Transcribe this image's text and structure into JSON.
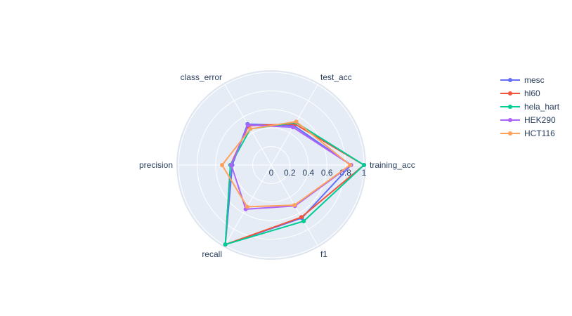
{
  "chart_data": {
    "type": "radar",
    "axes": [
      "training_acc",
      "test_acc",
      "class_error",
      "precision",
      "recall",
      "f1"
    ],
    "radial_ticks": [
      "0",
      "0.2",
      "0.4",
      "0.6",
      "0.8",
      "1"
    ],
    "radial_range": [
      0,
      1
    ],
    "grid": true,
    "legend_position": "top-right",
    "series": [
      {
        "name": "mesc",
        "color": "#636efa",
        "values": [
          0.86,
          0.49,
          0.51,
          0.42,
          0.99,
          0.66
        ]
      },
      {
        "name": "hl60",
        "color": "#ef553b",
        "values": [
          1.0,
          0.51,
          0.49,
          0.44,
          0.99,
          0.65
        ]
      },
      {
        "name": "hela_hart",
        "color": "#00cc96",
        "values": [
          1.0,
          0.53,
          0.45,
          0.44,
          0.99,
          0.7
        ]
      },
      {
        "name": "HEK290",
        "color": "#ab63fa",
        "values": [
          0.86,
          0.47,
          0.5,
          0.43,
          0.55,
          0.51
        ]
      },
      {
        "name": "HCT116",
        "color": "#ffa15a",
        "values": [
          0.85,
          0.54,
          0.45,
          0.53,
          0.52,
          0.5
        ]
      }
    ]
  }
}
